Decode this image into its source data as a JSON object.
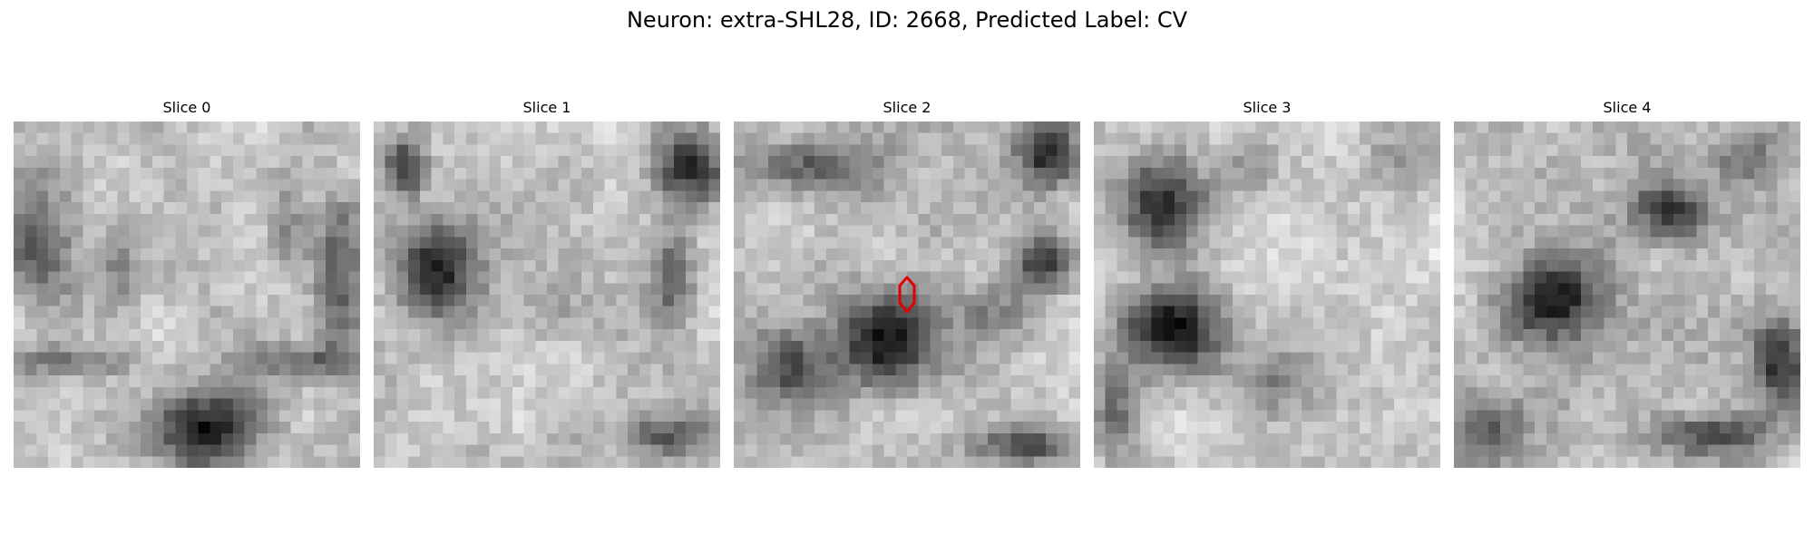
{
  "figure": {
    "title": "Neuron: extra-SHL28, ID: 2668, Predicted Label: CV"
  },
  "slices": [
    {
      "title": "Slice 0",
      "dark_blobs": [
        [
          0.55,
          0.9,
          0.16,
          0.12,
          0.9
        ],
        [
          0.05,
          0.35,
          0.1,
          0.18,
          0.55
        ],
        [
          0.95,
          0.45,
          0.08,
          0.22,
          0.6
        ],
        [
          0.15,
          0.7,
          0.22,
          0.05,
          0.45
        ],
        [
          0.85,
          0.7,
          0.22,
          0.05,
          0.45
        ],
        [
          0.3,
          0.4,
          0.06,
          0.14,
          0.35
        ],
        [
          0.8,
          0.3,
          0.06,
          0.14,
          0.35
        ]
      ],
      "base": 0.78,
      "seed": 11
    },
    {
      "title": "Slice 1",
      "dark_blobs": [
        [
          0.18,
          0.42,
          0.13,
          0.14,
          0.85
        ],
        [
          0.08,
          0.12,
          0.06,
          0.08,
          0.8
        ],
        [
          0.93,
          0.12,
          0.1,
          0.12,
          0.75
        ],
        [
          0.87,
          0.45,
          0.07,
          0.16,
          0.6
        ],
        [
          0.85,
          0.92,
          0.15,
          0.06,
          0.5
        ],
        [
          0.5,
          0.55,
          0.1,
          0.08,
          0.2
        ]
      ],
      "base": 0.78,
      "seed": 23
    },
    {
      "title": "Slice 2",
      "dark_blobs": [
        [
          0.44,
          0.63,
          0.15,
          0.14,
          0.95
        ],
        [
          0.92,
          0.08,
          0.09,
          0.1,
          0.85
        ],
        [
          0.92,
          0.4,
          0.08,
          0.08,
          0.75
        ],
        [
          0.22,
          0.12,
          0.18,
          0.08,
          0.55
        ],
        [
          0.15,
          0.72,
          0.12,
          0.14,
          0.5
        ],
        [
          0.75,
          0.55,
          0.1,
          0.1,
          0.35
        ],
        [
          0.85,
          0.95,
          0.15,
          0.05,
          0.6
        ]
      ],
      "base": 0.76,
      "seed": 37,
      "marker": true
    },
    {
      "title": "Slice 3",
      "dark_blobs": [
        [
          0.2,
          0.22,
          0.14,
          0.15,
          0.8
        ],
        [
          0.22,
          0.6,
          0.15,
          0.13,
          0.95
        ],
        [
          0.55,
          0.75,
          0.1,
          0.1,
          0.45
        ],
        [
          0.05,
          0.85,
          0.07,
          0.15,
          0.5
        ],
        [
          0.9,
          0.1,
          0.1,
          0.1,
          0.3
        ],
        [
          0.45,
          0.12,
          0.08,
          0.1,
          0.3
        ]
      ],
      "base": 0.8,
      "seed": 51
    },
    {
      "title": "Slice 4",
      "dark_blobs": [
        [
          0.28,
          0.52,
          0.14,
          0.12,
          0.85
        ],
        [
          0.62,
          0.25,
          0.1,
          0.08,
          0.8
        ],
        [
          0.95,
          0.7,
          0.08,
          0.12,
          0.7
        ],
        [
          0.75,
          0.92,
          0.16,
          0.06,
          0.6
        ],
        [
          0.1,
          0.9,
          0.1,
          0.1,
          0.4
        ],
        [
          0.85,
          0.1,
          0.12,
          0.08,
          0.35
        ]
      ],
      "base": 0.74,
      "seed": 67
    }
  ],
  "colors": {
    "marker": "#e00000"
  }
}
